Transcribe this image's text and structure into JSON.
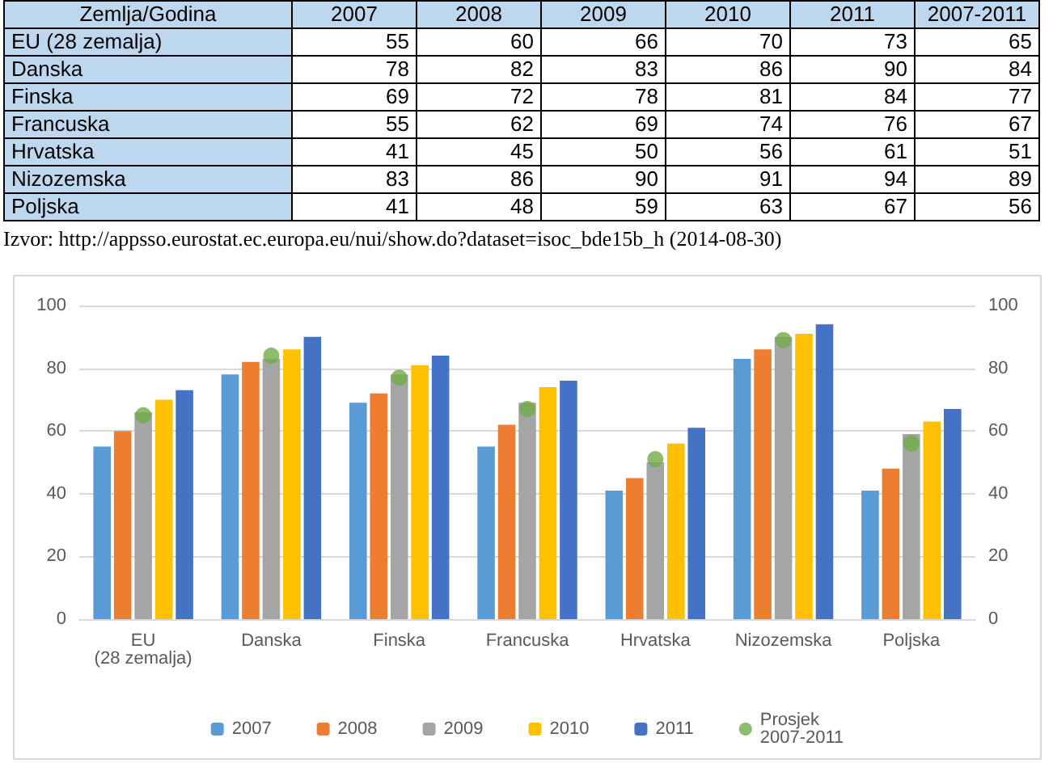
{
  "chart_data": [
    {
      "type": "heatmap",
      "data_labels": true,
      "categories": [
        "2007",
        "2008",
        "2009",
        "2010",
        "2011",
        "2007-2011"
      ],
      "y_categories": [
        "EU (28 zemalja)",
        "Danska",
        "Finska",
        "Francuska",
        "Hrvatska",
        "Nizozemska",
        "Poljska"
      ],
      "cells": [
        [
          55,
          60,
          66,
          70,
          73,
          65
        ],
        [
          78,
          82,
          83,
          86,
          90,
          84
        ],
        [
          69,
          72,
          78,
          81,
          84,
          77
        ],
        [
          55,
          62,
          69,
          74,
          76,
          67
        ],
        [
          41,
          45,
          50,
          56,
          61,
          51
        ],
        [
          83,
          86,
          90,
          91,
          94,
          89
        ],
        [
          41,
          48,
          59,
          63,
          67,
          56
        ]
      ],
      "annotations": [
        "Zemlja/Godina",
        "Izvor: http://appsso.eurostat.ec.europa.eu/nui/show.do?dataset=isoc_bde15b_h (2014-08-30)"
      ]
    },
    {
      "type": "bar",
      "categories": [
        "EU (28 zemalja)",
        "Danska",
        "Finska",
        "Francuska",
        "Hrvatska",
        "Nizozemska",
        "Poljska"
      ],
      "series": [
        {
          "name": "2007",
          "color": "#5b9bd5",
          "values": [
            55,
            78,
            69,
            55,
            41,
            83,
            41
          ]
        },
        {
          "name": "2008",
          "color": "#ed7d31",
          "values": [
            60,
            82,
            72,
            62,
            45,
            86,
            48
          ]
        },
        {
          "name": "2009",
          "color": "#a5a5a5",
          "values": [
            66,
            83,
            78,
            69,
            50,
            90,
            59
          ]
        },
        {
          "name": "2010",
          "color": "#ffc000",
          "values": [
            70,
            86,
            81,
            74,
            56,
            91,
            63
          ]
        },
        {
          "name": "2011",
          "color": "#4472c4",
          "values": [
            73,
            90,
            84,
            76,
            61,
            94,
            67
          ]
        },
        {
          "name": "Prosjek 2007-2011",
          "type": "scatter",
          "axis": "y2",
          "color": "#70ad47",
          "x": [
            "EU (28 zemalja)",
            "Danska",
            "Finska",
            "Francuska",
            "Hrvatska",
            "Nizozemska",
            "Poljska"
          ],
          "values": [
            65,
            84,
            77,
            67,
            51,
            89,
            56
          ]
        }
      ],
      "ylim": [
        0,
        100
      ],
      "yticks": [
        0,
        20,
        40,
        60,
        80,
        100
      ],
      "y2lim": [
        0,
        100
      ],
      "y2ticks": [
        0,
        20,
        40,
        60,
        80,
        100
      ],
      "grid": "y",
      "legend": "bottom",
      "marker": "circle"
    }
  ]
}
